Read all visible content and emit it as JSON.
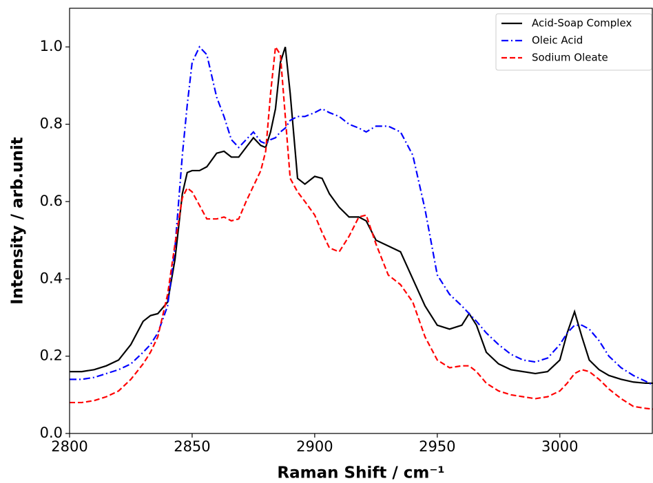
{
  "chart_data": {
    "type": "line",
    "xlabel": "Raman Shift / cm⁻¹",
    "ylabel": "Intensity / arb.unit",
    "xlim": [
      2800,
      3038
    ],
    "ylim": [
      0,
      1.1
    ],
    "xticks": [
      2800,
      2850,
      2900,
      2950,
      3000
    ],
    "yticks": [
      {
        "value": 0,
        "label": "0.0"
      },
      0.2,
      0.4,
      0.6,
      0.8,
      {
        "value": 1,
        "label": "1.0"
      }
    ],
    "legend": "upper right",
    "x": [
      2800,
      2805,
      2810,
      2815,
      2820,
      2825,
      2830,
      2833,
      2836,
      2840,
      2843,
      2846,
      2848,
      2850,
      2853,
      2856,
      2860,
      2863,
      2866,
      2869,
      2872,
      2875,
      2878,
      2880,
      2882,
      2884,
      2886,
      2888,
      2890,
      2893,
      2896,
      2900,
      2903,
      2906,
      2910,
      2914,
      2918,
      2921,
      2925,
      2930,
      2935,
      2940,
      2945,
      2950,
      2955,
      2960,
      2963,
      2966,
      2970,
      2975,
      2980,
      2985,
      2990,
      2995,
      3000,
      3003,
      3006,
      3009,
      3012,
      3016,
      3020,
      3025,
      3030,
      3035,
      3038
    ],
    "series": [
      {
        "name": "Acid-Soap Complex",
        "color": "#000000",
        "linestyle": "solid",
        "values": [
          0.16,
          0.16,
          0.165,
          0.175,
          0.19,
          0.23,
          0.29,
          0.305,
          0.31,
          0.34,
          0.45,
          0.62,
          0.675,
          0.68,
          0.68,
          0.69,
          0.725,
          0.73,
          0.715,
          0.715,
          0.74,
          0.765,
          0.745,
          0.74,
          0.78,
          0.84,
          0.96,
          1.0,
          0.88,
          0.66,
          0.645,
          0.665,
          0.66,
          0.62,
          0.585,
          0.56,
          0.56,
          0.55,
          0.5,
          0.485,
          0.47,
          0.4,
          0.33,
          0.28,
          0.27,
          0.28,
          0.31,
          0.28,
          0.21,
          0.18,
          0.165,
          0.16,
          0.155,
          0.16,
          0.19,
          0.26,
          0.315,
          0.25,
          0.19,
          0.165,
          0.15,
          0.14,
          0.133,
          0.13,
          0.13
        ]
      },
      {
        "name": "Oleic Acid",
        "color": "#0000ff",
        "linestyle": "dashdot",
        "values": [
          0.14,
          0.14,
          0.145,
          0.155,
          0.165,
          0.18,
          0.21,
          0.23,
          0.26,
          0.33,
          0.48,
          0.72,
          0.85,
          0.96,
          1.0,
          0.98,
          0.87,
          0.82,
          0.76,
          0.74,
          0.76,
          0.78,
          0.755,
          0.75,
          0.76,
          0.765,
          0.78,
          0.79,
          0.81,
          0.82,
          0.82,
          0.83,
          0.84,
          0.83,
          0.82,
          0.8,
          0.79,
          0.78,
          0.795,
          0.795,
          0.78,
          0.72,
          0.58,
          0.41,
          0.36,
          0.33,
          0.31,
          0.29,
          0.26,
          0.23,
          0.205,
          0.19,
          0.185,
          0.195,
          0.23,
          0.26,
          0.28,
          0.28,
          0.27,
          0.24,
          0.2,
          0.17,
          0.15,
          0.135,
          0.125
        ]
      },
      {
        "name": "Sodium Oleate",
        "color": "#ff0000",
        "linestyle": "dashed",
        "values": [
          0.08,
          0.08,
          0.085,
          0.095,
          0.11,
          0.14,
          0.18,
          0.21,
          0.25,
          0.36,
          0.49,
          0.61,
          0.635,
          0.625,
          0.59,
          0.555,
          0.555,
          0.56,
          0.55,
          0.555,
          0.6,
          0.64,
          0.68,
          0.73,
          0.88,
          1.0,
          0.98,
          0.82,
          0.66,
          0.625,
          0.6,
          0.565,
          0.52,
          0.48,
          0.47,
          0.51,
          0.56,
          0.565,
          0.49,
          0.41,
          0.385,
          0.34,
          0.25,
          0.19,
          0.17,
          0.175,
          0.175,
          0.16,
          0.13,
          0.11,
          0.1,
          0.095,
          0.09,
          0.095,
          0.11,
          0.13,
          0.155,
          0.165,
          0.16,
          0.14,
          0.115,
          0.09,
          0.07,
          0.065,
          0.063
        ]
      }
    ]
  }
}
